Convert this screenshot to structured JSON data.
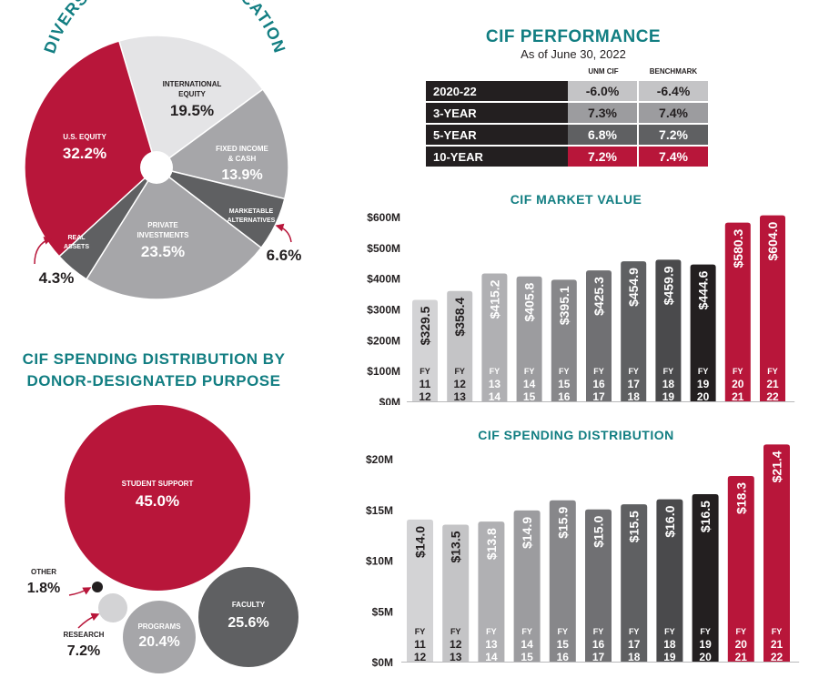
{
  "chart_data": [
    {
      "type": "pie",
      "title": "DIVERSIFIED ASSET ALLOCATION",
      "slices": [
        {
          "label": "INTERNATIONAL EQUITY",
          "value": 19.5,
          "value_label": "19.5%",
          "color": "#e4e4e6"
        },
        {
          "label": "FIXED INCOME & CASH",
          "value": 13.9,
          "value_label": "13.9%",
          "color": "#a6a6a9"
        },
        {
          "label": "MARKETABLE ALTERNATIVES",
          "value": 6.6,
          "value_label": "6.6%",
          "color": "#5f6062"
        },
        {
          "label": "PRIVATE INVESTMENTS",
          "value": 23.5,
          "value_label": "23.5%",
          "color": "#a6a6a9"
        },
        {
          "label": "REAL ASSETS",
          "value": 4.3,
          "value_label": "4.3%",
          "color": "#5f6062"
        },
        {
          "label": "U.S. EQUITY",
          "value": 32.2,
          "value_label": "32.2%",
          "color": "#b8163a"
        }
      ]
    },
    {
      "type": "table",
      "title": "CIF PERFORMANCE",
      "subtitle": "As of June 30, 2022",
      "columns": [
        "UNM CIF",
        "BENCHMARK"
      ],
      "rows": [
        {
          "label": "2020-22",
          "values": [
            "-6.0%",
            "-6.4%"
          ]
        },
        {
          "label": "3-YEAR",
          "values": [
            "7.3%",
            "7.4%"
          ]
        },
        {
          "label": "5-YEAR",
          "values": [
            "6.8%",
            "7.2%"
          ]
        },
        {
          "label": "10-YEAR",
          "values": [
            "7.2%",
            "7.4%"
          ]
        }
      ]
    },
    {
      "type": "bar",
      "title": "CIF MARKET VALUE",
      "categories": [
        "FY 11 12",
        "FY 12 13",
        "FY 13 14",
        "FY 14 15",
        "FY 15 16",
        "FY 16 17",
        "FY 17 18",
        "FY 18 19",
        "FY 19 20",
        "FY 20 21",
        "FY 21 22"
      ],
      "values": [
        329.5,
        358.4,
        415.2,
        405.8,
        395.1,
        425.3,
        454.9,
        459.9,
        444.6,
        580.3,
        604.0
      ],
      "value_labels": [
        "$329.5",
        "$358.4",
        "$415.2",
        "$405.8",
        "$395.1",
        "$425.3",
        "$454.9",
        "$459.9",
        "$444.6",
        "$580.3",
        "$604.0"
      ],
      "yticks": [
        "$0M",
        "$100M",
        "$200M",
        "$300M",
        "$400M",
        "$500M",
        "$600M"
      ],
      "ylim": [
        0,
        600
      ]
    },
    {
      "type": "bar",
      "title": "CIF SPENDING DISTRIBUTION",
      "categories": [
        "FY 11 12",
        "FY 12 13",
        "FY 13 14",
        "FY 14 15",
        "FY 15 16",
        "FY 16 17",
        "FY 17 18",
        "FY 18 19",
        "FY 19 20",
        "FY 20 21",
        "FY 21 22"
      ],
      "values": [
        14.0,
        13.5,
        13.8,
        14.9,
        15.9,
        15.0,
        15.5,
        16.0,
        16.5,
        18.3,
        21.4
      ],
      "value_labels": [
        "$14.0",
        "$13.5",
        "$13.8",
        "$14.9",
        "$15.9",
        "$15.0",
        "$15.5",
        "$16.0",
        "$16.5",
        "$18.3",
        "$21.4"
      ],
      "yticks": [
        "$0M",
        "$5M",
        "$10M",
        "$15M",
        "$20M"
      ],
      "ylim": [
        0,
        20
      ]
    },
    {
      "type": "bubble",
      "title": "CIF SPENDING DISTRIBUTION BY DONOR-DESIGNATED PURPOSE",
      "items": [
        {
          "label": "STUDENT SUPPORT",
          "value": 45.0,
          "value_label": "45.0%",
          "color": "#b8163a"
        },
        {
          "label": "FACULTY",
          "value": 25.6,
          "value_label": "25.6%",
          "color": "#5f6062"
        },
        {
          "label": "PROGRAMS",
          "value": 20.4,
          "value_label": "20.4%",
          "color": "#a6a6a9"
        },
        {
          "label": "RESEARCH",
          "value": 7.2,
          "value_label": "7.2%",
          "color": "#d3d3d5"
        },
        {
          "label": "OTHER",
          "value": 1.8,
          "value_label": "1.8%",
          "color": "#231f20"
        }
      ]
    }
  ],
  "colors": {
    "teal": "#127e82",
    "red": "#b8163a",
    "dark": "#231f20"
  }
}
